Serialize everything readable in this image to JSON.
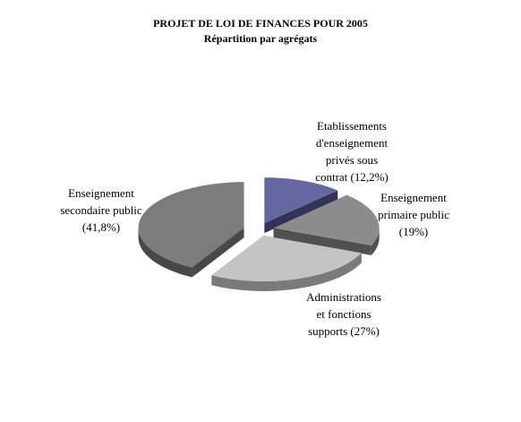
{
  "chart_data": {
    "type": "pie",
    "style": "3d-exploded",
    "title": "PROJET DE LOI DE FINANCES POUR 2005",
    "subtitle": "Répartition par agrégats",
    "legend": "none",
    "slices": [
      {
        "label_lines": [
          "Etablissements",
          "d'enseignement",
          "privés sous",
          "contrat (12,2%)"
        ],
        "value": 12.2,
        "color": "#6666a0",
        "side_color": "#33335a"
      },
      {
        "label_lines": [
          "Enseignement",
          "primaire public",
          "(19%)"
        ],
        "value": 19.0,
        "color": "#8c8c8c",
        "side_color": "#505050"
      },
      {
        "label_lines": [
          "Administrations",
          "et fonctions",
          "supports (27%)"
        ],
        "value": 27.0,
        "color": "#c4c4c4",
        "side_color": "#7a7a7a"
      },
      {
        "label_lines": [
          "Enseignement",
          "secondaire public",
          "(41,8%)"
        ],
        "value": 41.8,
        "color": "#7c7c7c",
        "side_color": "#484848"
      }
    ]
  }
}
